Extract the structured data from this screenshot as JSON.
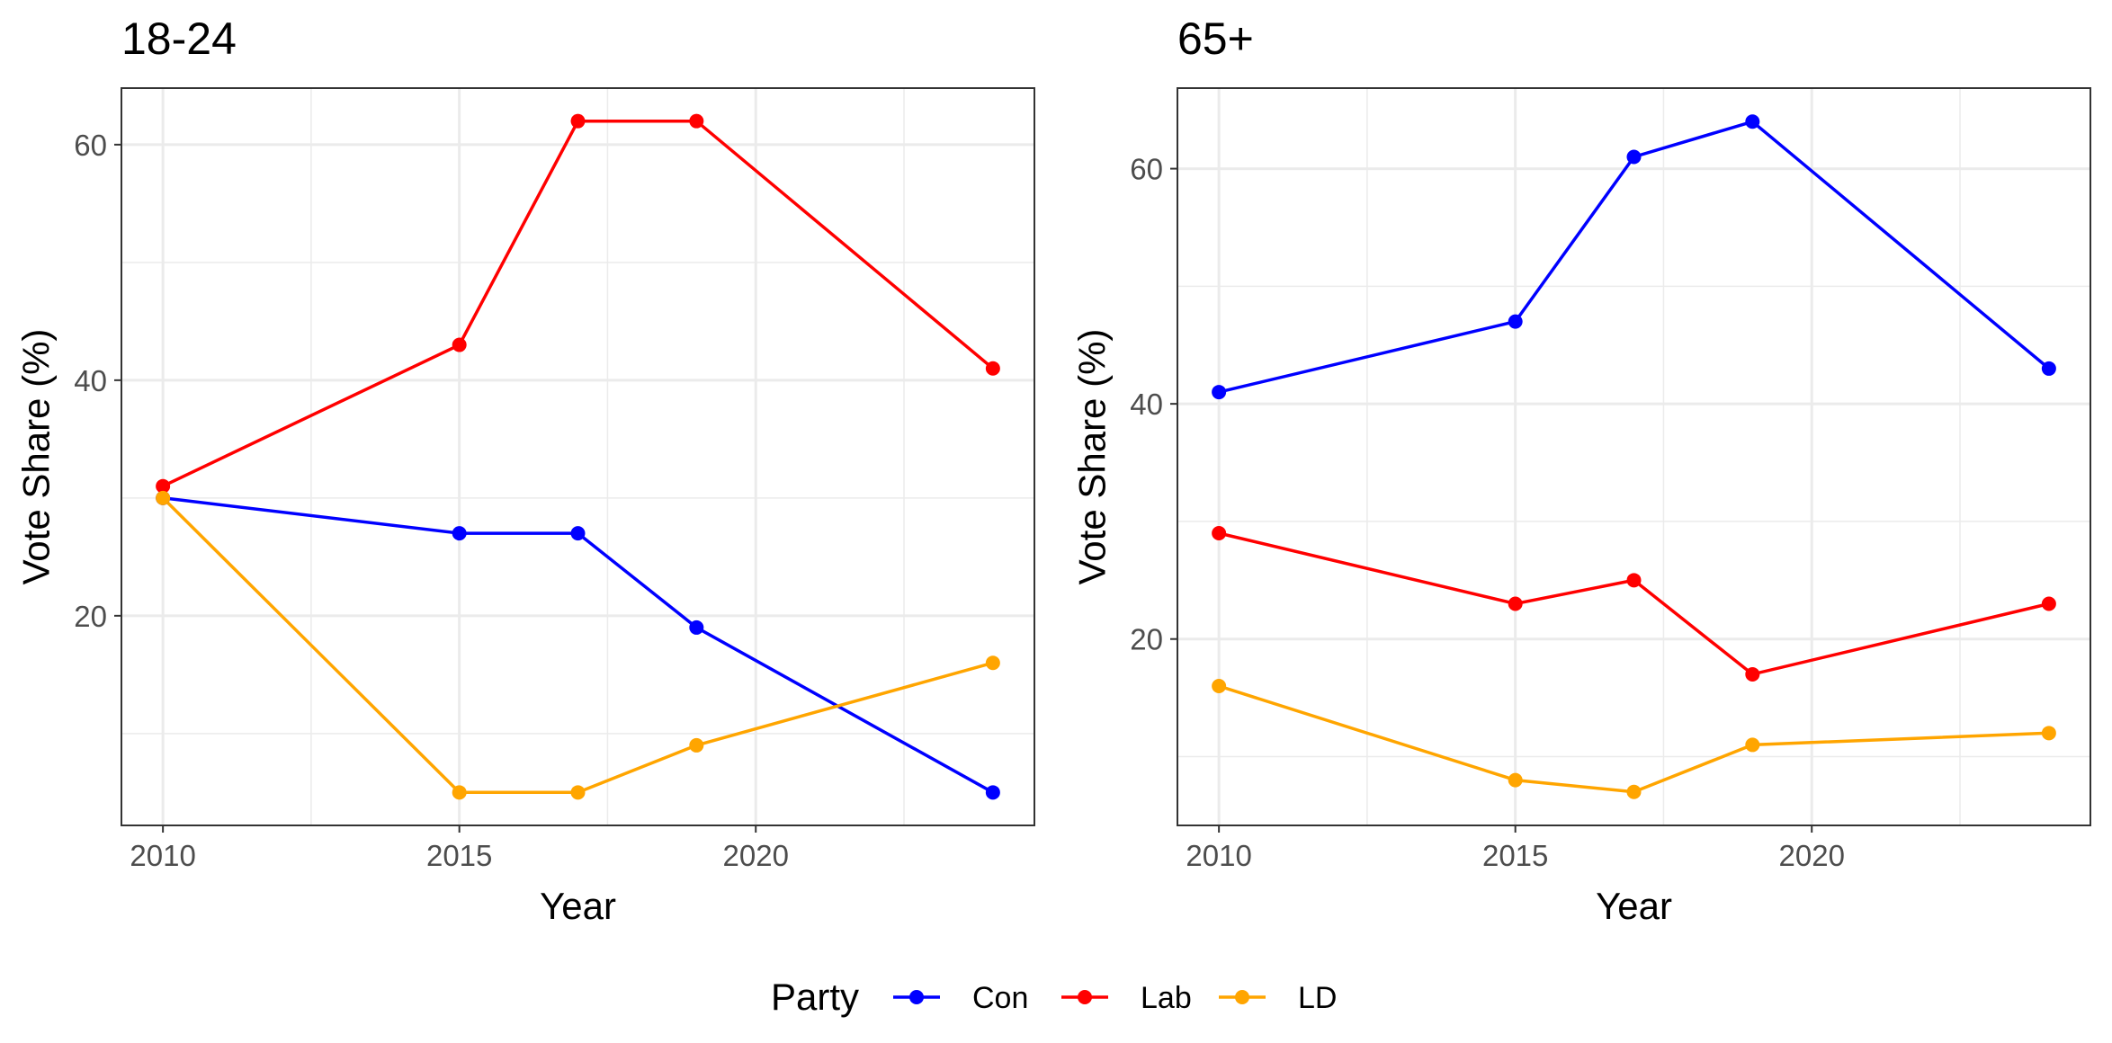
{
  "chart_data": [
    {
      "type": "line",
      "title": "18-24",
      "xlabel": "Year",
      "ylabel": "Vote Share (%)",
      "x": [
        2010,
        2015,
        2017,
        2019,
        2024
      ],
      "xlim": [
        2009.3,
        2024.7
      ],
      "ylim": [
        2.2,
        64.8
      ],
      "xticks": [
        2010,
        2015,
        2020
      ],
      "yticks": [
        20,
        40,
        60
      ],
      "yticks_minor": [
        10,
        30,
        50
      ],
      "xticks_minor": [
        2012.5,
        2017.5,
        2022.5
      ],
      "grid": true,
      "series": [
        {
          "name": "Con",
          "color": "#0000FF",
          "values": [
            30,
            27,
            27,
            19,
            5
          ]
        },
        {
          "name": "Lab",
          "color": "#FF0000",
          "values": [
            31,
            43,
            62,
            62,
            41
          ]
        },
        {
          "name": "LD",
          "color": "#FFA500",
          "values": [
            30,
            5,
            5,
            9,
            16
          ]
        }
      ]
    },
    {
      "type": "line",
      "title": "65+",
      "xlabel": "Year",
      "ylabel": "Vote Share (%)",
      "x": [
        2010,
        2015,
        2017,
        2019,
        2024
      ],
      "xlim": [
        2009.3,
        2024.7
      ],
      "ylim": [
        4.15,
        66.85
      ],
      "xticks": [
        2010,
        2015,
        2020
      ],
      "yticks": [
        20,
        40,
        60
      ],
      "yticks_minor": [
        10,
        30,
        50
      ],
      "xticks_minor": [
        2012.5,
        2017.5,
        2022.5
      ],
      "grid": true,
      "series": [
        {
          "name": "Con",
          "color": "#0000FF",
          "values": [
            41,
            47,
            61,
            64,
            43
          ]
        },
        {
          "name": "Lab",
          "color": "#FF0000",
          "values": [
            29,
            23,
            25,
            17,
            23
          ]
        },
        {
          "name": "LD",
          "color": "#FFA500",
          "values": [
            16,
            8,
            7,
            11,
            12
          ]
        }
      ]
    }
  ],
  "legend": {
    "title": "Party",
    "position": "bottom",
    "items": [
      {
        "name": "Con",
        "color": "#0000FF"
      },
      {
        "name": "Lab",
        "color": "#FF0000"
      },
      {
        "name": "LD",
        "color": "#FFA500"
      }
    ]
  }
}
